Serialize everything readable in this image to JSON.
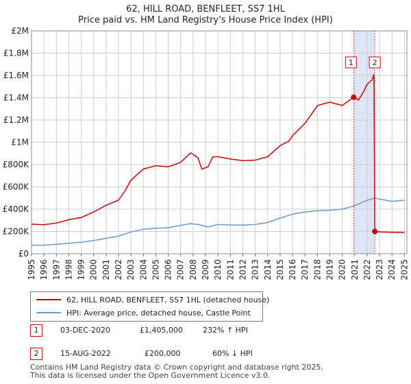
{
  "header": {
    "line1": "62, HILL ROAD, BENFLEET, SS7 1HL",
    "line2": "Price paid vs. HM Land Registry's House Price Index (HPI)"
  },
  "colors": {
    "property": "#cc0000",
    "hpi": "#6699cc",
    "band": "#dde6f5"
  },
  "legend": {
    "property_label": "62, HILL ROAD, BENFLEET, SS7 1HL (detached house)",
    "hpi_label": "HPI: Average price, detached house, Castle Point"
  },
  "sales": [
    {
      "num": "1",
      "date": "03-DEC-2020",
      "price": "£1,405,000",
      "hpi": "232% ↑ HPI"
    },
    {
      "num": "2",
      "date": "15-AUG-2022",
      "price": "£200,000",
      "hpi": "60% ↓ HPI"
    }
  ],
  "footer": {
    "line1": "Contains HM Land Registry data © Crown copyright and database right 2025.",
    "line2": "This data is licensed under the Open Government Licence v3.0."
  },
  "chart_data": {
    "type": "line",
    "title": "62, HILL ROAD, BENFLEET, SS7 1HL — Price paid vs. HM Land Registry's House Price Index (HPI)",
    "xlabel": "",
    "ylabel": "",
    "xlim": [
      1995,
      2025.2
    ],
    "ylim": [
      0,
      2000000
    ],
    "x_ticks": [
      1995,
      1996,
      1997,
      1998,
      1999,
      2000,
      2001,
      2002,
      2003,
      2004,
      2005,
      2006,
      2007,
      2008,
      2009,
      2010,
      2011,
      2012,
      2013,
      2014,
      2015,
      2016,
      2017,
      2018,
      2019,
      2020,
      2021,
      2022,
      2023,
      2024,
      2025
    ],
    "y_ticks": [
      {
        "value": 0,
        "label": "£0"
      },
      {
        "value": 200000,
        "label": "£200K"
      },
      {
        "value": 400000,
        "label": "£400K"
      },
      {
        "value": 600000,
        "label": "£600K"
      },
      {
        "value": 800000,
        "label": "£800K"
      },
      {
        "value": 1000000,
        "label": "£1M"
      },
      {
        "value": 1200000,
        "label": "£1.2M"
      },
      {
        "value": 1400000,
        "label": "£1.4M"
      },
      {
        "value": 1600000,
        "label": "£1.6M"
      },
      {
        "value": 1800000,
        "label": "£1.8M"
      },
      {
        "value": 2000000,
        "label": "£2M"
      }
    ],
    "grid": true,
    "shaded_band": [
      2020.92,
      2022.62
    ],
    "markers": [
      {
        "label": "1",
        "x": 2020.92,
        "y": 1405000
      },
      {
        "label": "2",
        "x": 2022.62,
        "y": 200000
      }
    ],
    "series": [
      {
        "name": "62, HILL ROAD, BENFLEET, SS7 1HL (detached house)",
        "x": [
          1995,
          1996,
          1997,
          1998,
          1999,
          2000,
          2001,
          2002,
          2002.5,
          2003,
          2003.5,
          2004,
          2005,
          2006,
          2007,
          2007.8,
          2008.4,
          2008.7,
          2009.2,
          2009.6,
          2010,
          2011,
          2012,
          2013,
          2014,
          2015,
          2015.7,
          2016,
          2017,
          2018,
          2019,
          2020,
          2020.92,
          2021.3,
          2021.7,
          2022,
          2022.4,
          2022.55,
          2022.62,
          2023,
          2024,
          2025
        ],
        "values": [
          265000,
          260000,
          275000,
          305000,
          325000,
          375000,
          435000,
          480000,
          560000,
          660000,
          710000,
          760000,
          790000,
          780000,
          820000,
          905000,
          860000,
          760000,
          780000,
          870000,
          870000,
          850000,
          835000,
          840000,
          870000,
          970000,
          1010000,
          1060000,
          1170000,
          1330000,
          1360000,
          1330000,
          1405000,
          1380000,
          1450000,
          1520000,
          1560000,
          1610000,
          200000,
          195000,
          192000,
          190000
        ]
      },
      {
        "name": "HPI: Average price, detached house, Castle Point",
        "x": [
          1995,
          1996,
          1997,
          1998,
          1999,
          2000,
          2001,
          2002,
          2003,
          2004,
          2005,
          2006,
          2007,
          2007.8,
          2008.4,
          2009.2,
          2010,
          2011,
          2012,
          2013,
          2014,
          2015,
          2016,
          2017,
          2018,
          2019,
          2020,
          2021,
          2022,
          2022.62,
          2023,
          2024,
          2025
        ],
        "values": [
          75000,
          77000,
          85000,
          95000,
          103000,
          118000,
          138000,
          158000,
          195000,
          220000,
          228000,
          233000,
          255000,
          270000,
          262000,
          240000,
          262000,
          258000,
          257000,
          262000,
          280000,
          320000,
          355000,
          375000,
          385000,
          390000,
          400000,
          430000,
          480000,
          500000,
          490000,
          470000,
          480000
        ]
      }
    ]
  }
}
